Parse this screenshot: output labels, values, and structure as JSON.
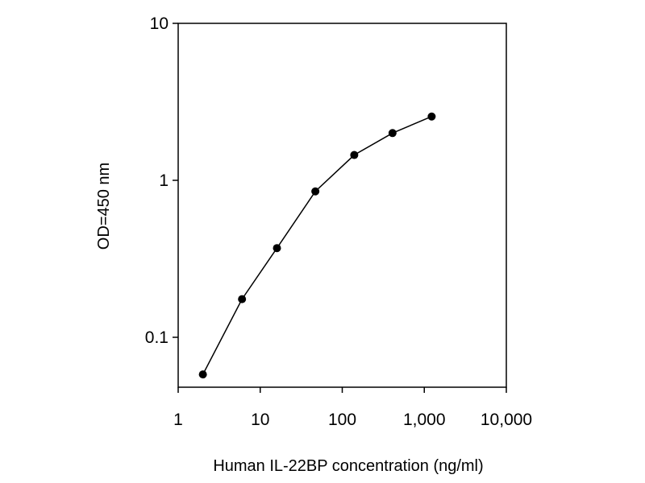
{
  "chart_data": {
    "type": "line",
    "title": "",
    "xlabel": "Human IL-22BP concentration (ng/ml)",
    "ylabel": "OD=450 nm",
    "x_scale": "log",
    "y_scale": "log",
    "xlim": [
      1,
      10000
    ],
    "ylim": [
      0.05,
      10
    ],
    "x_ticks": [
      1,
      10,
      100,
      1000,
      10000
    ],
    "x_tick_labels": [
      "1",
      "10",
      "100",
      "1,000",
      "10,000"
    ],
    "y_ticks": [
      0.1,
      1,
      10
    ],
    "y_tick_labels": [
      "0.1",
      "1",
      "10"
    ],
    "grid": false,
    "legend": "none",
    "series": [
      {
        "x": [
          2,
          6,
          16,
          47,
          140,
          410,
          1230
        ],
        "y": [
          0.058,
          0.175,
          0.37,
          0.85,
          1.45,
          2.0,
          2.55
        ]
      }
    ],
    "colors": {
      "line": "#000000",
      "marker": "#000000",
      "axes": "#000000"
    }
  }
}
